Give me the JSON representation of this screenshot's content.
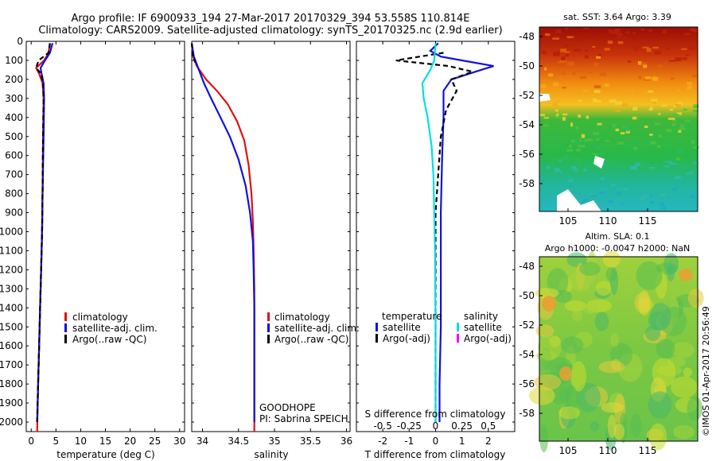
{
  "header": {
    "line1": "Argo profile: IF 6900933_194 27-Mar-2017 20170329_394 53.558S 110.814E",
    "line2": "Climatology: CARS2009. Satellite-adjusted climatology: synTS_20170325.nc (2.9d earlier)"
  },
  "colors": {
    "climatology": "#e01010",
    "satellite": "#1010e0",
    "argo": "#000000",
    "sat_salinity": "#00e0e0",
    "argo_salinity": "#ff00ff"
  },
  "chart_data": [
    {
      "type": "line",
      "xlabel": "temperature (deg C)",
      "ylim": [
        0,
        2050
      ],
      "xlim": [
        -1,
        31
      ],
      "xticks": [
        0,
        5,
        10,
        15,
        20,
        25,
        30
      ],
      "yticks": [
        0,
        100,
        200,
        300,
        400,
        500,
        600,
        700,
        800,
        900,
        1000,
        1100,
        1200,
        1300,
        1400,
        1500,
        1600,
        1700,
        1800,
        1900,
        2000
      ],
      "legend": [
        "climatology",
        "satellite-adj. clim.",
        "Argo(..raw -QC)"
      ],
      "series": [
        {
          "name": "climatology",
          "x": [
            3.8,
            3.5,
            2.6,
            1.0,
            1.6,
            2.3,
            2.5,
            2.4,
            2.3,
            2.2,
            2.0,
            1.8,
            1.6,
            1.4,
            1.2
          ],
          "y": [
            10,
            60,
            100,
            140,
            170,
            220,
            300,
            500,
            800,
            1000,
            1200,
            1400,
            1600,
            1800,
            2050
          ]
        },
        {
          "name": "satellite-adj. clim.",
          "x": [
            4.3,
            3.8,
            2.8,
            1.9,
            2.1,
            2.5,
            2.6,
            2.5,
            2.3,
            2.2,
            2.0,
            1.8,
            1.6,
            1.4,
            1.2
          ],
          "y": [
            10,
            60,
            100,
            140,
            170,
            220,
            300,
            500,
            800,
            1000,
            1200,
            1400,
            1600,
            1800,
            2000
          ]
        },
        {
          "name": "Argo(..raw -QC)",
          "x": [
            3.8,
            3.5,
            1.5,
            1.0,
            2.0,
            2.4,
            2.5,
            2.4,
            2.3,
            2.2,
            2.0,
            1.8,
            1.6,
            1.4,
            1.2
          ],
          "y": [
            10,
            60,
            100,
            140,
            170,
            220,
            300,
            500,
            800,
            1000,
            1200,
            1400,
            1600,
            1800,
            2000
          ]
        }
      ]
    },
    {
      "type": "line",
      "xlabel": "salinity",
      "ylim": [
        0,
        2050
      ],
      "xlim": [
        33.85,
        36.05
      ],
      "xticks": [
        34,
        34.5,
        35,
        35.5,
        36
      ],
      "legend": [
        "climatology",
        "satellite-adj. clim.",
        "Argo(..raw -QC)"
      ],
      "annotation": [
        "GOODHOPE",
        "PI: Sabrina SPEICH"
      ],
      "series": [
        {
          "name": "climatology",
          "x": [
            33.85,
            33.87,
            33.92,
            34.05,
            34.2,
            34.35,
            34.48,
            34.58,
            34.64,
            34.68,
            34.7,
            34.71,
            34.72,
            34.72,
            34.72,
            34.72
          ],
          "y": [
            10,
            80,
            130,
            200,
            260,
            330,
            420,
            520,
            650,
            800,
            950,
            1100,
            1300,
            1500,
            1800,
            2050
          ]
        },
        {
          "name": "satellite-adj. clim.",
          "x": [
            33.85,
            33.88,
            33.95,
            34.02,
            34.12,
            34.25,
            34.38,
            34.5,
            34.6,
            34.66,
            34.7,
            34.71,
            34.72,
            34.72,
            34.72
          ],
          "y": [
            10,
            80,
            150,
            220,
            300,
            400,
            500,
            620,
            760,
            900,
            1050,
            1200,
            1400,
            1700,
            2000
          ]
        },
        {
          "name": "Argo(..raw -QC)",
          "x": [
            33.85,
            33.87,
            33.9
          ],
          "y": [
            10,
            80,
            110
          ]
        }
      ]
    },
    {
      "type": "line",
      "xlabel": "T difference from climatology",
      "x2label": "S difference from climatology",
      "ylim": [
        0,
        2050
      ],
      "xlim": [
        -3,
        3
      ],
      "xticks": [
        -2,
        -1,
        0,
        1,
        2
      ],
      "x2ticks": [
        -0.5,
        -0.25,
        0,
        0.25,
        0.5
      ],
      "legend_headers": [
        "temperature",
        "salinity"
      ],
      "legend": [
        "satellite",
        "Argo(-adj)",
        "satellite",
        "Argo(-adj)"
      ],
      "series": [
        {
          "name": "temperature satellite",
          "x": [
            0.1,
            -0.2,
            0.2,
            1.0,
            2.2,
            1.5,
            0.6,
            0.3,
            0.3,
            0.25,
            0.2,
            0.2,
            0.2,
            0.15,
            0.15
          ],
          "y": [
            10,
            50,
            80,
            100,
            130,
            160,
            200,
            260,
            400,
            600,
            900,
            1200,
            1500,
            1800,
            2000
          ]
        },
        {
          "name": "temperature Argo(-adj)",
          "x": [
            0.3,
            -1.5,
            0.5,
            1.4,
            0.6,
            0.8,
            0.4,
            0.2,
            0.1,
            0.0,
            0.0,
            0.0,
            0.0
          ],
          "y": [
            60,
            100,
            130,
            160,
            200,
            260,
            360,
            500,
            700,
            900,
            1200,
            1600,
            2000
          ]
        },
        {
          "name": "salinity satellite",
          "x": [
            0.0,
            -0.05,
            -0.2,
            -0.5,
            -0.45,
            -0.3,
            -0.15,
            -0.08,
            -0.05,
            -0.02,
            0.0,
            0.0
          ],
          "y": [
            10,
            100,
            150,
            220,
            300,
            400,
            550,
            700,
            900,
            1100,
            1500,
            2000
          ]
        }
      ]
    }
  ],
  "maps": {
    "top": {
      "title": "sat. SST: 3.64 Argo: 3.39",
      "yticks": [
        "-48",
        "-50",
        "-52",
        "-54",
        "-56",
        "-58"
      ],
      "xticks": [
        "105",
        "110",
        "115"
      ]
    },
    "bottom": {
      "title_line1": "Altim. SLA: 0.1",
      "title_line2": "Argo h1000: -0.0047 h2000: NaN",
      "yticks": [
        "-48",
        "-50",
        "-52",
        "-54",
        "-56",
        "-58"
      ],
      "xticks": [
        "105",
        "110",
        "115"
      ]
    },
    "credit": "©IMOS 01-Apr-2017 20:56:49"
  }
}
